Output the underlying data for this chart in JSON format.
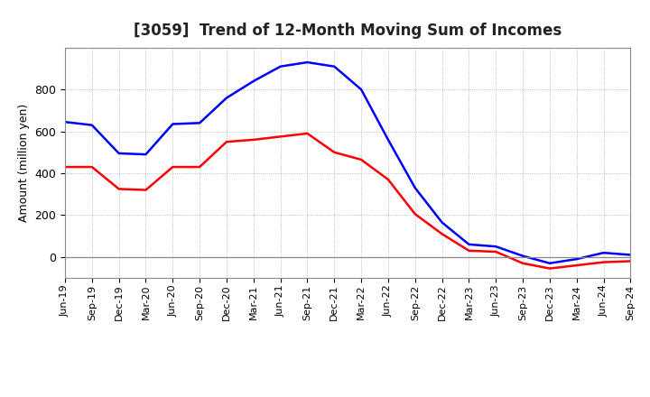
{
  "title": "[3059]  Trend of 12-Month Moving Sum of Incomes",
  "ylabel": "Amount (million yen)",
  "background_color": "#ffffff",
  "grid_color": "#999999",
  "x_labels": [
    "Jun-19",
    "Sep-19",
    "Dec-19",
    "Mar-20",
    "Jun-20",
    "Sep-20",
    "Dec-20",
    "Mar-21",
    "Jun-21",
    "Sep-21",
    "Dec-21",
    "Mar-22",
    "Jun-22",
    "Sep-22",
    "Dec-22",
    "Mar-23",
    "Jun-23",
    "Sep-23",
    "Dec-23",
    "Mar-24",
    "Jun-24",
    "Sep-24"
  ],
  "ordinary_income": [
    645,
    630,
    495,
    490,
    635,
    640,
    760,
    840,
    910,
    930,
    910,
    800,
    560,
    330,
    165,
    60,
    50,
    5,
    -30,
    -10,
    20,
    10
  ],
  "net_income": [
    430,
    430,
    325,
    320,
    430,
    430,
    550,
    560,
    575,
    590,
    500,
    465,
    370,
    205,
    110,
    30,
    25,
    -30,
    -55,
    -40,
    -25,
    -20
  ],
  "ordinary_color": "#0000ff",
  "net_color": "#ff0000",
  "ylim_min": -100,
  "ylim_max": 1000,
  "yticks": [
    0,
    200,
    400,
    600,
    800
  ]
}
